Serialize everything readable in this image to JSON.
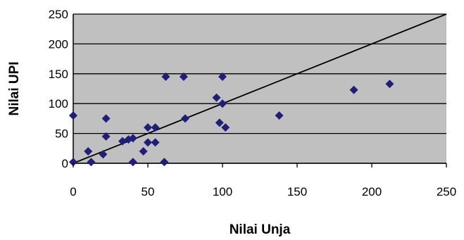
{
  "chart_data": {
    "type": "scatter",
    "xlabel": "Nilai Unja",
    "ylabel": "Nilai UPI",
    "xlim": [
      0,
      250
    ],
    "ylim": [
      0,
      250
    ],
    "x_ticks": [
      "0",
      "50",
      "100",
      "150",
      "200",
      "250"
    ],
    "y_ticks": [
      "0",
      "50",
      "100",
      "150",
      "200",
      "250"
    ],
    "grid": "horizontal",
    "legend": "none",
    "colors": {
      "plot_background": "#c0c0c0",
      "marker": "#1f1f7a",
      "line": "#000000",
      "grid": "#000000"
    },
    "series": [
      {
        "marker": "diamond",
        "points": [
          [
            0,
            2
          ],
          [
            0,
            80
          ],
          [
            10,
            20
          ],
          [
            12,
            2
          ],
          [
            20,
            15
          ],
          [
            22,
            45
          ],
          [
            22,
            75
          ],
          [
            33,
            37
          ],
          [
            37,
            40
          ],
          [
            40,
            42
          ],
          [
            40,
            2
          ],
          [
            47,
            20
          ],
          [
            50,
            35
          ],
          [
            50,
            60
          ],
          [
            55,
            35
          ],
          [
            55,
            60
          ],
          [
            61,
            2
          ],
          [
            62,
            145
          ],
          [
            74,
            145
          ],
          [
            75,
            75
          ],
          [
            96,
            110
          ],
          [
            98,
            68
          ],
          [
            100,
            145
          ],
          [
            100,
            100
          ],
          [
            102,
            60
          ],
          [
            138,
            80
          ],
          [
            188,
            123
          ],
          [
            212,
            133
          ]
        ]
      }
    ],
    "trend_line": {
      "from": [
        0,
        0
      ],
      "to": [
        250,
        250
      ]
    }
  }
}
